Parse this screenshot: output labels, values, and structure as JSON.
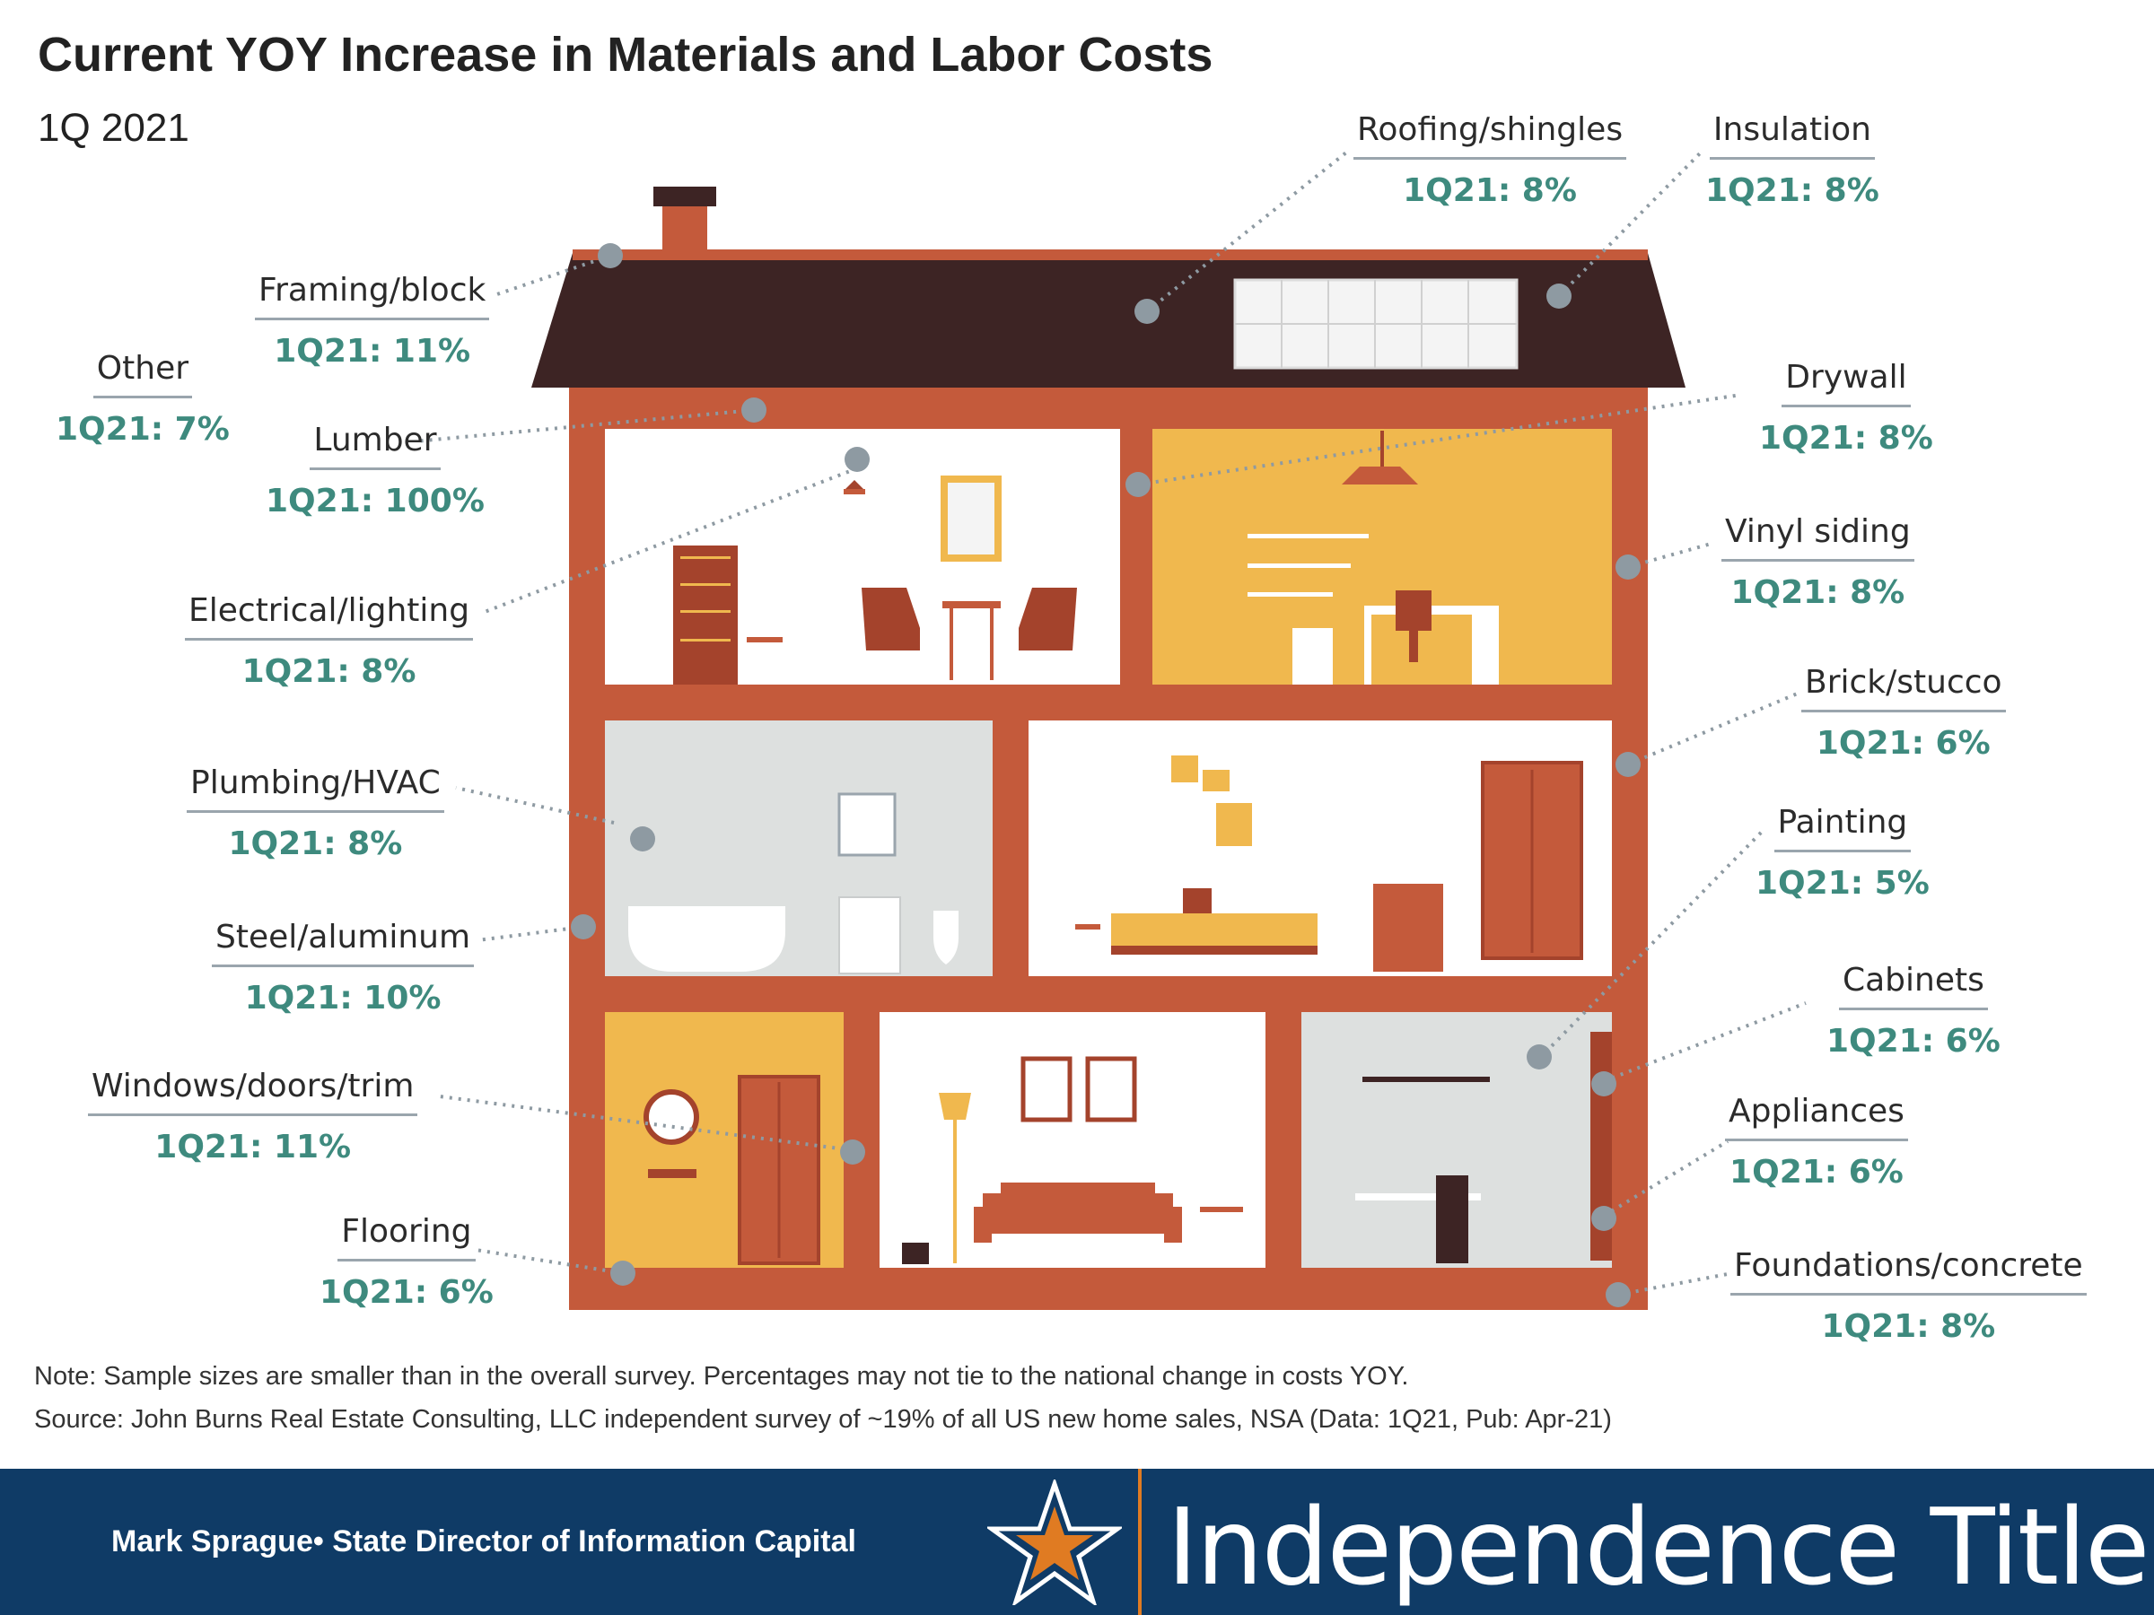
{
  "title": "Current YOY Increase in Materials and Labor Costs",
  "subtitle": "1Q 2021",
  "labels": [
    {
      "id": "roofing",
      "name": "Roofing/shingles",
      "value": "1Q21: 8%"
    },
    {
      "id": "insulation",
      "name": "Insulation",
      "value": "1Q21: 8%"
    },
    {
      "id": "framing",
      "name": "Framing/block",
      "value": "1Q21: 11%"
    },
    {
      "id": "other",
      "name": "Other",
      "value": "1Q21: 7%"
    },
    {
      "id": "lumber",
      "name": "Lumber",
      "value": "1Q21: 100%"
    },
    {
      "id": "drywall",
      "name": "Drywall",
      "value": "1Q21: 8%"
    },
    {
      "id": "vinyl",
      "name": "Vinyl siding",
      "value": "1Q21: 8%"
    },
    {
      "id": "electrical",
      "name": "Electrical/lighting",
      "value": "1Q21: 8%"
    },
    {
      "id": "brick",
      "name": "Brick/stucco",
      "value": "1Q21: 6%"
    },
    {
      "id": "plumbing",
      "name": "Plumbing/HVAC",
      "value": "1Q21: 8%"
    },
    {
      "id": "painting",
      "name": "Painting",
      "value": "1Q21: 5%"
    },
    {
      "id": "steel",
      "name": "Steel/aluminum",
      "value": "1Q21: 10%"
    },
    {
      "id": "cabinets",
      "name": "Cabinets",
      "value": "1Q21: 6%"
    },
    {
      "id": "windows",
      "name": "Windows/doors/trim",
      "value": "1Q21: 11%"
    },
    {
      "id": "appliances",
      "name": "Appliances",
      "value": "1Q21: 6%"
    },
    {
      "id": "flooring",
      "name": "Flooring",
      "value": "1Q21: 6%"
    },
    {
      "id": "foundations",
      "name": "Foundations/concrete",
      "value": "1Q21: 8%"
    }
  ],
  "note": "Note: Sample sizes are smaller than in the overall survey. Percentages may not tie to the national change in costs YOY.",
  "source": "Source: John Burns Real Estate Consulting, LLC independent survey of ~19% of all US new home sales, NSA (Data: 1Q21, Pub: Apr-21)",
  "footer": {
    "author": "Mark Sprague• State Director of Information Capital",
    "brand": "Independence Title"
  },
  "colors": {
    "wall": "#c45a3b",
    "roof": "#3d2424",
    "yellow_room": "#f0b84e",
    "grey_room": "#dde0df",
    "value_text": "#3e8a7e",
    "footer_bg": "#0f3b66",
    "accent": "#e07b22"
  }
}
